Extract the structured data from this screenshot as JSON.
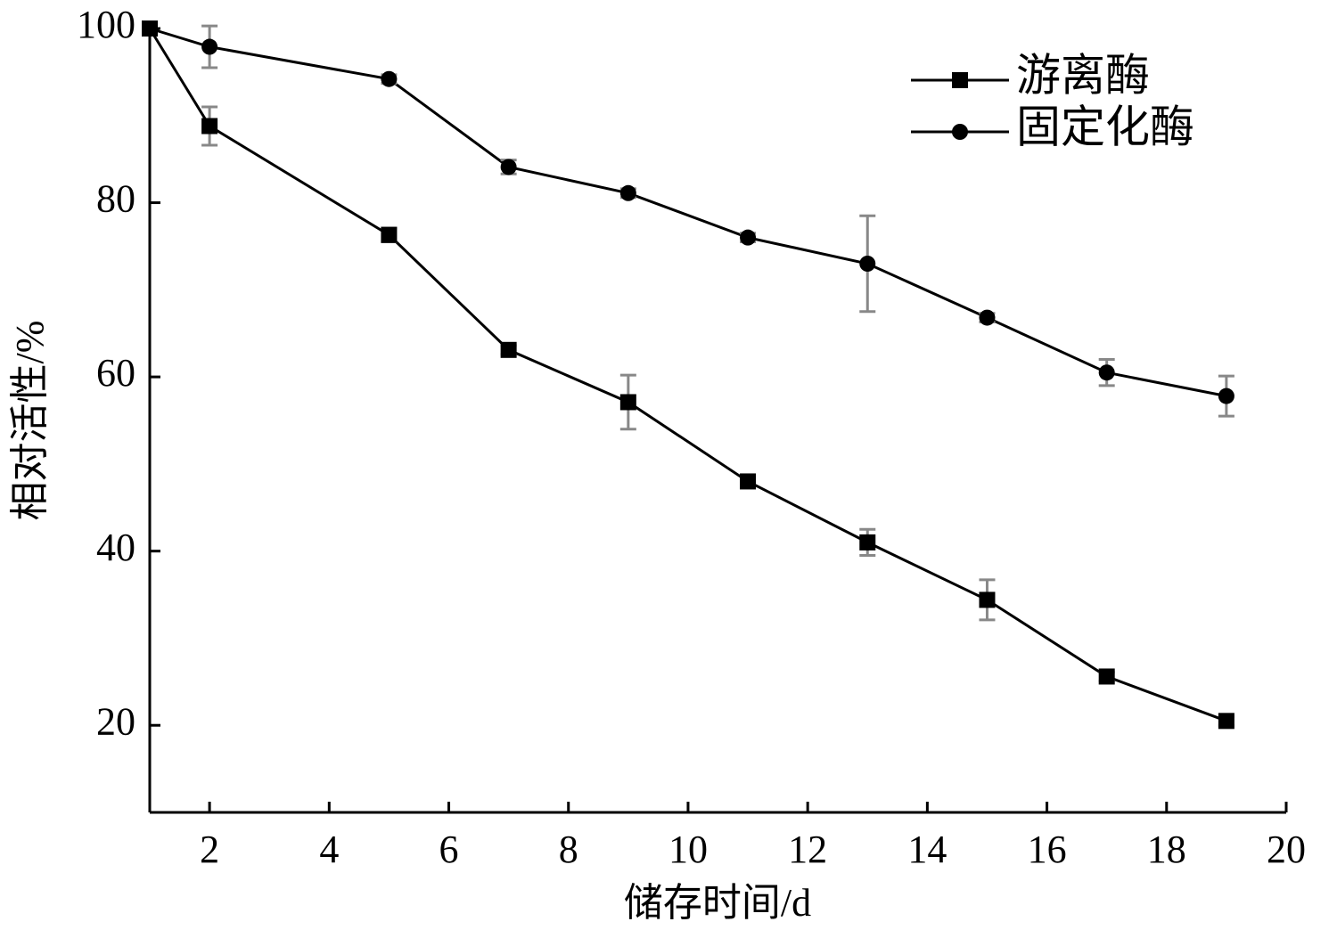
{
  "chart_data": {
    "type": "line",
    "xlabel": "储存时间/d",
    "ylabel": "相对活性/%",
    "x": [
      1,
      2,
      5,
      7,
      9,
      11,
      13,
      15,
      17,
      19
    ],
    "series": [
      {
        "name": "游离酶",
        "color": "#000000",
        "marker": "square",
        "values": [
          100,
          88.8,
          76.3,
          63.1,
          57.1,
          48,
          41,
          34.4,
          25.6,
          20.5
        ],
        "errors": [
          0,
          2.2,
          0.8,
          0.5,
          3.1,
          0.5,
          1.5,
          2.3,
          0.5,
          0.5
        ]
      },
      {
        "name": "固定化酶",
        "color": "#000000",
        "marker": "circle",
        "values": [
          100,
          97.9,
          94.2,
          84.1,
          81.1,
          76,
          73,
          66.8,
          60.5,
          57.8
        ],
        "errors": [
          0,
          2.4,
          0.5,
          0.8,
          0.5,
          0.5,
          5.5,
          0.5,
          1.5,
          2.3
        ]
      }
    ],
    "error_color": "#888888",
    "xlim": [
      1,
      20
    ],
    "xticks": [
      2,
      4,
      6,
      8,
      10,
      12,
      14,
      16,
      18,
      20
    ],
    "ylim": [
      10,
      100
    ],
    "yticks": [
      20,
      40,
      60,
      80,
      100
    ],
    "legend": "upper right",
    "grid": false
  }
}
